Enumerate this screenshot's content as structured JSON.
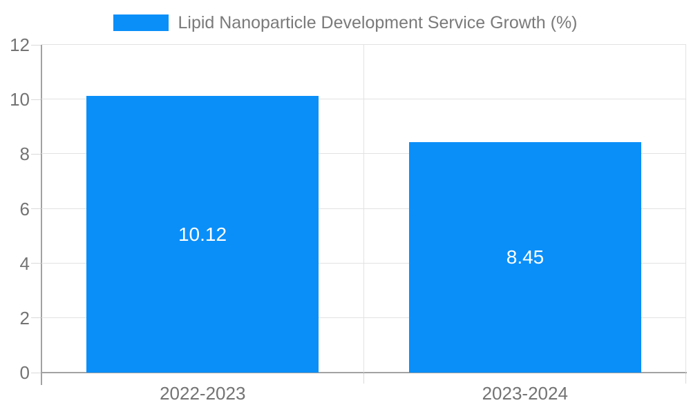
{
  "chart_data": {
    "type": "bar",
    "title": "Lipid Nanoparticle Development Service Growth (%)",
    "categories": [
      "2022-2023",
      "2023-2024"
    ],
    "values": [
      10.12,
      8.45
    ],
    "value_labels": [
      "10.12",
      "8.45"
    ],
    "xlabel": "",
    "ylabel": "",
    "ylim": [
      0,
      12
    ],
    "yticks": [
      0,
      2,
      4,
      6,
      8,
      10,
      12
    ],
    "grid": true,
    "legend": {
      "position": "top-center",
      "entries": [
        "Lipid Nanoparticle Development Service Growth (%)"
      ]
    },
    "data_label_position": "inside-center",
    "colors": {
      "bar": "#0a8ff9",
      "value_label": "#ffffff",
      "axis_line": "#a2a2a2",
      "gridline": "#e2e2e2",
      "tick": "#d9d9d9",
      "tick_label": "#737373",
      "legend_text": "#7a7a7a",
      "background": "#ffffff"
    }
  }
}
